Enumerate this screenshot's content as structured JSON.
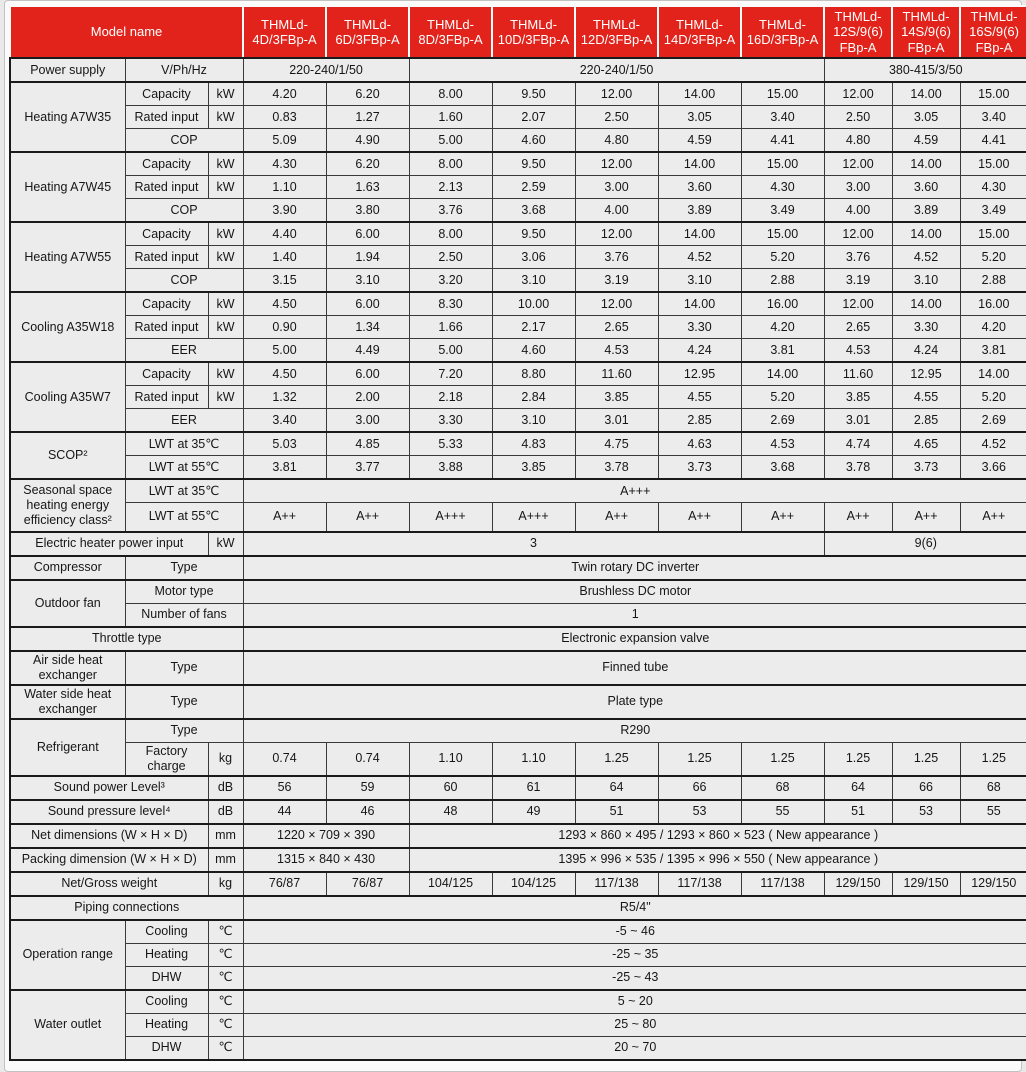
{
  "colors": {
    "header_bg": "#e2231b",
    "header_text": "#ffffff",
    "body_bg": "#ececec",
    "border": "#3a3a3a",
    "frame": "#1a1a1a",
    "text": "#161616",
    "page_bg": "#fbfbfb"
  },
  "header": {
    "model_name_label": "Model name",
    "models": [
      "THMLd-\n4D/3FBp-A",
      "THMLd-\n6D/3FBp-A",
      "THMLd-\n8D/3FBp-A",
      "THMLd-\n10D/3FBp-A",
      "THMLd-\n12D/3FBp-A",
      "THMLd-\n14D/3FBp-A",
      "THMLd-\n16D/3FBp-A",
      "THMLd-\n12S/9(6)\nFBp-A",
      "THMLd-\n14S/9(6)\nFBp-A",
      "THMLd-\n16S/9(6)\nFBp-A"
    ]
  },
  "rows": [
    {
      "name": "power-supply",
      "thick": true,
      "cells": [
        {
          "t": "Power supply",
          "cls": "g"
        },
        {
          "t": "V/Ph/Hz",
          "c": 2,
          "cls": "l"
        },
        {
          "t": "220-240/1/50",
          "c": 2
        },
        {
          "t": "220-240/1/50",
          "c": 5
        },
        {
          "t": "380-415/3/50",
          "c": 3
        }
      ]
    },
    {
      "name": "heating-a7w35-capacity",
      "thick": true,
      "cells": [
        {
          "t": "Heating A7W35",
          "r": 3,
          "cls": "g"
        },
        {
          "t": "Capacity",
          "cls": "l"
        },
        {
          "t": "kW",
          "cls": "u"
        },
        {
          "vals": [
            "4.20",
            "6.20",
            "8.00",
            "9.50",
            "12.00",
            "14.00",
            "15.00",
            "12.00",
            "14.00",
            "15.00"
          ]
        }
      ]
    },
    {
      "name": "heating-a7w35-rated-input",
      "cells": [
        {
          "t": "Rated input",
          "cls": "l"
        },
        {
          "t": "kW",
          "cls": "u"
        },
        {
          "vals": [
            "0.83",
            "1.27",
            "1.60",
            "2.07",
            "2.50",
            "3.05",
            "3.40",
            "2.50",
            "3.05",
            "3.40"
          ]
        }
      ]
    },
    {
      "name": "heating-a7w35-cop",
      "cells": [
        {
          "t": "COP",
          "c": 2,
          "cls": "l"
        },
        {
          "vals": [
            "5.09",
            "4.90",
            "5.00",
            "4.60",
            "4.80",
            "4.59",
            "4.41",
            "4.80",
            "4.59",
            "4.41"
          ]
        }
      ]
    },
    {
      "name": "heating-a7w45-capacity",
      "thick": true,
      "cells": [
        {
          "t": "Heating A7W45",
          "r": 3,
          "cls": "g"
        },
        {
          "t": "Capacity",
          "cls": "l"
        },
        {
          "t": "kW",
          "cls": "u"
        },
        {
          "vals": [
            "4.30",
            "6.20",
            "8.00",
            "9.50",
            "12.00",
            "14.00",
            "15.00",
            "12.00",
            "14.00",
            "15.00"
          ]
        }
      ]
    },
    {
      "name": "heating-a7w45-rated-input",
      "cells": [
        {
          "t": "Rated input",
          "cls": "l"
        },
        {
          "t": "kW",
          "cls": "u"
        },
        {
          "vals": [
            "1.10",
            "1.63",
            "2.13",
            "2.59",
            "3.00",
            "3.60",
            "4.30",
            "3.00",
            "3.60",
            "4.30"
          ]
        }
      ]
    },
    {
      "name": "heating-a7w45-cop",
      "cells": [
        {
          "t": "COP",
          "c": 2,
          "cls": "l"
        },
        {
          "vals": [
            "3.90",
            "3.80",
            "3.76",
            "3.68",
            "4.00",
            "3.89",
            "3.49",
            "4.00",
            "3.89",
            "3.49"
          ]
        }
      ]
    },
    {
      "name": "heating-a7w55-capacity",
      "thick": true,
      "cells": [
        {
          "t": "Heating A7W55",
          "r": 3,
          "cls": "g"
        },
        {
          "t": "Capacity",
          "cls": "l"
        },
        {
          "t": "kW",
          "cls": "u"
        },
        {
          "vals": [
            "4.40",
            "6.00",
            "8.00",
            "9.50",
            "12.00",
            "14.00",
            "15.00",
            "12.00",
            "14.00",
            "15.00"
          ]
        }
      ]
    },
    {
      "name": "heating-a7w55-rated-input",
      "cells": [
        {
          "t": "Rated input",
          "cls": "l"
        },
        {
          "t": "kW",
          "cls": "u"
        },
        {
          "vals": [
            "1.40",
            "1.94",
            "2.50",
            "3.06",
            "3.76",
            "4.52",
            "5.20",
            "3.76",
            "4.52",
            "5.20"
          ]
        }
      ]
    },
    {
      "name": "heating-a7w55-cop",
      "cells": [
        {
          "t": "COP",
          "c": 2,
          "cls": "l"
        },
        {
          "vals": [
            "3.15",
            "3.10",
            "3.20",
            "3.10",
            "3.19",
            "3.10",
            "2.88",
            "3.19",
            "3.10",
            "2.88"
          ]
        }
      ]
    },
    {
      "name": "cooling-a35w18-capacity",
      "thick": true,
      "cells": [
        {
          "t": "Cooling A35W18",
          "r": 3,
          "cls": "g"
        },
        {
          "t": "Capacity",
          "cls": "l"
        },
        {
          "t": "kW",
          "cls": "u"
        },
        {
          "vals": [
            "4.50",
            "6.00",
            "8.30",
            "10.00",
            "12.00",
            "14.00",
            "16.00",
            "12.00",
            "14.00",
            "16.00"
          ]
        }
      ]
    },
    {
      "name": "cooling-a35w18-rated-input",
      "cells": [
        {
          "t": "Rated input",
          "cls": "l"
        },
        {
          "t": "kW",
          "cls": "u"
        },
        {
          "vals": [
            "0.90",
            "1.34",
            "1.66",
            "2.17",
            "2.65",
            "3.30",
            "4.20",
            "2.65",
            "3.30",
            "4.20"
          ]
        }
      ]
    },
    {
      "name": "cooling-a35w18-eer",
      "cells": [
        {
          "t": "EER",
          "c": 2,
          "cls": "l"
        },
        {
          "vals": [
            "5.00",
            "4.49",
            "5.00",
            "4.60",
            "4.53",
            "4.24",
            "3.81",
            "4.53",
            "4.24",
            "3.81"
          ]
        }
      ]
    },
    {
      "name": "cooling-a35w7-capacity",
      "thick": true,
      "cells": [
        {
          "t": "Cooling A35W7",
          "r": 3,
          "cls": "g"
        },
        {
          "t": "Capacity",
          "cls": "l"
        },
        {
          "t": "kW",
          "cls": "u"
        },
        {
          "vals": [
            "4.50",
            "6.00",
            "7.20",
            "8.80",
            "11.60",
            "12.95",
            "14.00",
            "11.60",
            "12.95",
            "14.00"
          ]
        }
      ]
    },
    {
      "name": "cooling-a35w7-rated-input",
      "cells": [
        {
          "t": "Rated input",
          "cls": "l"
        },
        {
          "t": "kW",
          "cls": "u"
        },
        {
          "vals": [
            "1.32",
            "2.00",
            "2.18",
            "2.84",
            "3.85",
            "4.55",
            "5.20",
            "3.85",
            "4.55",
            "5.20"
          ]
        }
      ]
    },
    {
      "name": "cooling-a35w7-eer",
      "cells": [
        {
          "t": "EER",
          "c": 2,
          "cls": "l"
        },
        {
          "vals": [
            "3.40",
            "3.00",
            "3.30",
            "3.10",
            "3.01",
            "2.85",
            "2.69",
            "3.01",
            "2.85",
            "2.69"
          ]
        }
      ]
    },
    {
      "name": "scop-lwt35",
      "thick": true,
      "cells": [
        {
          "t": "SCOP²",
          "r": 2,
          "cls": "g"
        },
        {
          "t": "LWT at 35℃",
          "c": 2,
          "cls": "l"
        },
        {
          "vals": [
            "5.03",
            "4.85",
            "5.33",
            "4.83",
            "4.75",
            "4.63",
            "4.53",
            "4.74",
            "4.65",
            "4.52"
          ]
        }
      ]
    },
    {
      "name": "scop-lwt55",
      "cells": [
        {
          "t": "LWT at 55℃",
          "c": 2,
          "cls": "l"
        },
        {
          "vals": [
            "3.81",
            "3.77",
            "3.88",
            "3.85",
            "3.78",
            "3.73",
            "3.68",
            "3.78",
            "3.73",
            "3.66"
          ]
        }
      ]
    },
    {
      "name": "seasonal-class-lwt35",
      "thick": true,
      "cells": [
        {
          "t": "Seasonal space heating energy efficiency class²",
          "r": 2,
          "cls": "g"
        },
        {
          "t": "LWT at 35℃",
          "c": 2,
          "cls": "l"
        },
        {
          "t": "A+++",
          "c": 10
        }
      ]
    },
    {
      "name": "seasonal-class-lwt55",
      "h": 29,
      "cells": [
        {
          "t": "LWT at 55℃",
          "c": 2,
          "cls": "l"
        },
        {
          "vals": [
            "A++",
            "A++",
            "A+++",
            "A+++",
            "A++",
            "A++",
            "A++",
            "A++",
            "A++",
            "A++"
          ]
        }
      ]
    },
    {
      "name": "electric-heater-power-input",
      "thick": true,
      "cells": [
        {
          "t": "Electric heater power input",
          "c": 2,
          "cls": "l"
        },
        {
          "t": "kW",
          "cls": "u"
        },
        {
          "t": "3",
          "c": 7
        },
        {
          "t": "9(6)",
          "c": 3
        }
      ]
    },
    {
      "name": "compressor-type",
      "thick": true,
      "cells": [
        {
          "t": "Compressor",
          "cls": "g"
        },
        {
          "t": "Type",
          "c": 2,
          "cls": "l"
        },
        {
          "t": "Twin rotary DC inverter",
          "c": 10
        }
      ]
    },
    {
      "name": "outdoor-fan-motor-type",
      "thick": true,
      "cells": [
        {
          "t": "Outdoor fan",
          "r": 2,
          "cls": "g"
        },
        {
          "t": "Motor type",
          "c": 2,
          "cls": "l"
        },
        {
          "t": "Brushless DC motor",
          "c": 10
        }
      ]
    },
    {
      "name": "outdoor-fan-number",
      "cells": [
        {
          "t": "Number of fans",
          "c": 2,
          "cls": "l"
        },
        {
          "t": "1",
          "c": 10
        }
      ]
    },
    {
      "name": "throttle-type",
      "thick": true,
      "cells": [
        {
          "t": "Throttle type",
          "c": 3,
          "cls": "l"
        },
        {
          "t": "Electronic expansion valve",
          "c": 10
        }
      ]
    },
    {
      "name": "air-side-heat-exchanger",
      "thick": true,
      "h": 32,
      "cells": [
        {
          "t": "Air side heat exchanger",
          "cls": "g"
        },
        {
          "t": "Type",
          "c": 2,
          "cls": "l"
        },
        {
          "t": "Finned tube",
          "c": 10
        }
      ]
    },
    {
      "name": "water-side-heat-exchanger",
      "thick": true,
      "h": 32,
      "cells": [
        {
          "t": "Water side heat exchanger",
          "cls": "g"
        },
        {
          "t": "Type",
          "c": 2,
          "cls": "l"
        },
        {
          "t": "Plate type",
          "c": 10
        }
      ]
    },
    {
      "name": "refrigerant-type",
      "thick": true,
      "cells": [
        {
          "t": "Refrigerant",
          "r": 2,
          "cls": "g"
        },
        {
          "t": "Type",
          "c": 2,
          "cls": "l"
        },
        {
          "t": "R290",
          "c": 10
        }
      ]
    },
    {
      "name": "refrigerant-factory-charge",
      "h": 30,
      "cells": [
        {
          "t": "Factory charge",
          "cls": "l"
        },
        {
          "t": "kg",
          "cls": "u"
        },
        {
          "vals": [
            "0.74",
            "0.74",
            "1.10",
            "1.10",
            "1.25",
            "1.25",
            "1.25",
            "1.25",
            "1.25",
            "1.25"
          ]
        }
      ]
    },
    {
      "name": "sound-power-level",
      "thick": true,
      "cells": [
        {
          "t": "Sound power Level³",
          "c": 2,
          "cls": "l"
        },
        {
          "t": "dB",
          "cls": "u"
        },
        {
          "vals": [
            "56",
            "59",
            "60",
            "61",
            "64",
            "66",
            "68",
            "64",
            "66",
            "68"
          ]
        }
      ]
    },
    {
      "name": "sound-pressure-level",
      "thick": true,
      "cells": [
        {
          "t": "Sound pressure level⁴",
          "c": 2,
          "cls": "l"
        },
        {
          "t": "dB",
          "cls": "u"
        },
        {
          "vals": [
            "44",
            "46",
            "48",
            "49",
            "51",
            "53",
            "55",
            "51",
            "53",
            "55"
          ]
        }
      ]
    },
    {
      "name": "net-dimensions",
      "thick": true,
      "cells": [
        {
          "t": "Net dimensions (W × H × D)",
          "c": 2,
          "cls": "l"
        },
        {
          "t": "mm",
          "cls": "u"
        },
        {
          "t": "1220 × 709 × 390",
          "c": 2
        },
        {
          "t": "1293 × 860 × 495 / 1293 × 860 × 523 ( New appearance )",
          "c": 8
        }
      ]
    },
    {
      "name": "packing-dimension",
      "thick": true,
      "cells": [
        {
          "t": "Packing dimension (W × H × D)",
          "c": 2,
          "cls": "l"
        },
        {
          "t": "mm",
          "cls": "u"
        },
        {
          "t": "1315 × 840 × 430",
          "c": 2
        },
        {
          "t": "1395 × 996 × 535 / 1395 × 996 × 550 ( New appearance )",
          "c": 8
        }
      ]
    },
    {
      "name": "net-gross-weight",
      "thick": true,
      "cells": [
        {
          "t": "Net/Gross weight",
          "c": 2,
          "cls": "l"
        },
        {
          "t": "kg",
          "cls": "u"
        },
        {
          "vals": [
            "76/87",
            "76/87",
            "104/125",
            "104/125",
            "117/138",
            "117/138",
            "117/138",
            "129/150",
            "129/150",
            "129/150"
          ]
        }
      ]
    },
    {
      "name": "piping-connections",
      "thick": true,
      "cells": [
        {
          "t": "Piping connections",
          "c": 3,
          "cls": "l"
        },
        {
          "t": "R5/4\"",
          "c": 10
        }
      ]
    },
    {
      "name": "operation-range-cooling",
      "thick": true,
      "cells": [
        {
          "t": "Operation range",
          "r": 3,
          "cls": "g"
        },
        {
          "t": "Cooling",
          "cls": "l"
        },
        {
          "t": "℃",
          "cls": "u"
        },
        {
          "t": "-5 ~ 46",
          "c": 10
        }
      ]
    },
    {
      "name": "operation-range-heating",
      "cells": [
        {
          "t": "Heating",
          "cls": "l"
        },
        {
          "t": "℃",
          "cls": "u"
        },
        {
          "t": "-25 ~ 35",
          "c": 10
        }
      ]
    },
    {
      "name": "operation-range-dhw",
      "cells": [
        {
          "t": "DHW",
          "cls": "l"
        },
        {
          "t": "℃",
          "cls": "u"
        },
        {
          "t": "-25 ~ 43",
          "c": 10
        }
      ]
    },
    {
      "name": "water-outlet-cooling",
      "thick": true,
      "cells": [
        {
          "t": "Water outlet",
          "r": 3,
          "cls": "g"
        },
        {
          "t": "Cooling",
          "cls": "l"
        },
        {
          "t": "℃",
          "cls": "u"
        },
        {
          "t": "5 ~ 20",
          "c": 10
        }
      ]
    },
    {
      "name": "water-outlet-heating",
      "cells": [
        {
          "t": "Heating",
          "cls": "l"
        },
        {
          "t": "℃",
          "cls": "u"
        },
        {
          "t": "25 ~ 80",
          "c": 10
        }
      ]
    },
    {
      "name": "water-outlet-dhw",
      "cells": [
        {
          "t": "DHW",
          "cls": "l"
        },
        {
          "t": "℃",
          "cls": "u"
        },
        {
          "t": "20 ~ 70",
          "c": 10
        }
      ]
    }
  ]
}
